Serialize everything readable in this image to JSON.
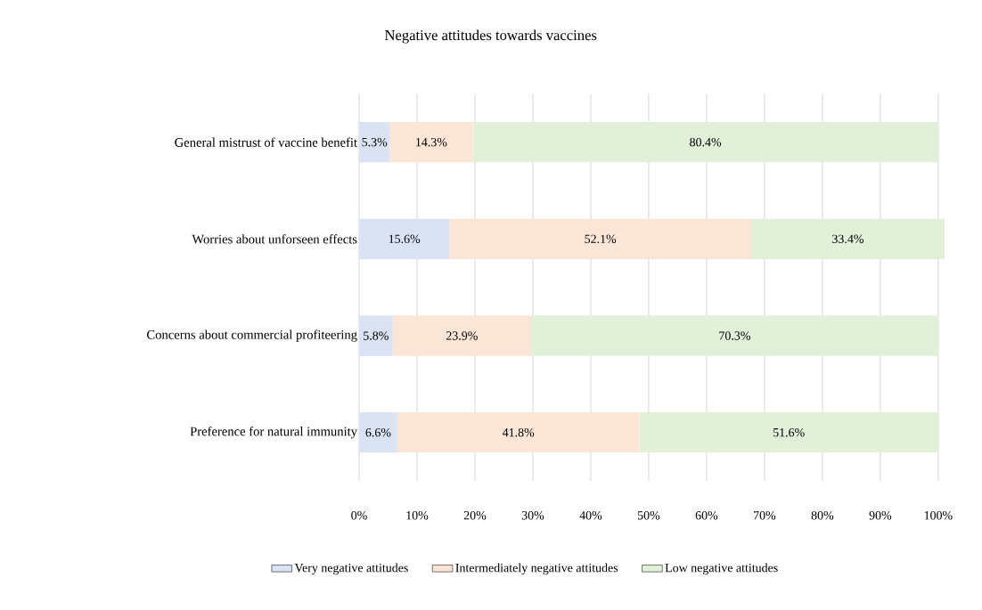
{
  "chart_data": {
    "type": "bar",
    "orientation": "horizontal",
    "stacked": true,
    "title": "Negative attitudes towards vaccines",
    "categories": [
      "General mistrust of vaccine benefit",
      "Worries about unforseen effects",
      "Concerns about commercial profiteering",
      "Preference for natural immunity"
    ],
    "series": [
      {
        "name": "Very negative attitudes",
        "color": "#dae3f3",
        "values": [
          5.3,
          15.6,
          5.8,
          6.6
        ],
        "value_labels": [
          "5.3%",
          "15.6%",
          "5.8%",
          "6.6%"
        ]
      },
      {
        "name": "Intermediately negative attitudes",
        "color": "#fbe5d6",
        "values": [
          14.3,
          52.1,
          23.9,
          41.8
        ],
        "value_labels": [
          "14.3%",
          "52.1%",
          "23.9%",
          "41.8%"
        ]
      },
      {
        "name": "Low negative attitudes",
        "color": "#e2f0d9",
        "values": [
          80.4,
          33.4,
          70.3,
          51.6
        ],
        "value_labels": [
          "80.4%",
          "33.4%",
          "70.3%",
          "51.6%"
        ]
      }
    ],
    "xlim": [
      0,
      101.1
    ],
    "xticks": [
      {
        "value": 0,
        "label": "0%"
      },
      {
        "value": 10,
        "label": "10%"
      },
      {
        "value": 20,
        "label": "20%"
      },
      {
        "value": 30,
        "label": "30%"
      },
      {
        "value": 40,
        "label": "40%"
      },
      {
        "value": 50,
        "label": "50%"
      },
      {
        "value": 60,
        "label": "60%"
      },
      {
        "value": 70,
        "label": "70%"
      },
      {
        "value": 80,
        "label": "80%"
      },
      {
        "value": 90,
        "label": "90%"
      },
      {
        "value": 100,
        "label": "100%"
      }
    ],
    "grid": "x",
    "legend": "bottom"
  }
}
